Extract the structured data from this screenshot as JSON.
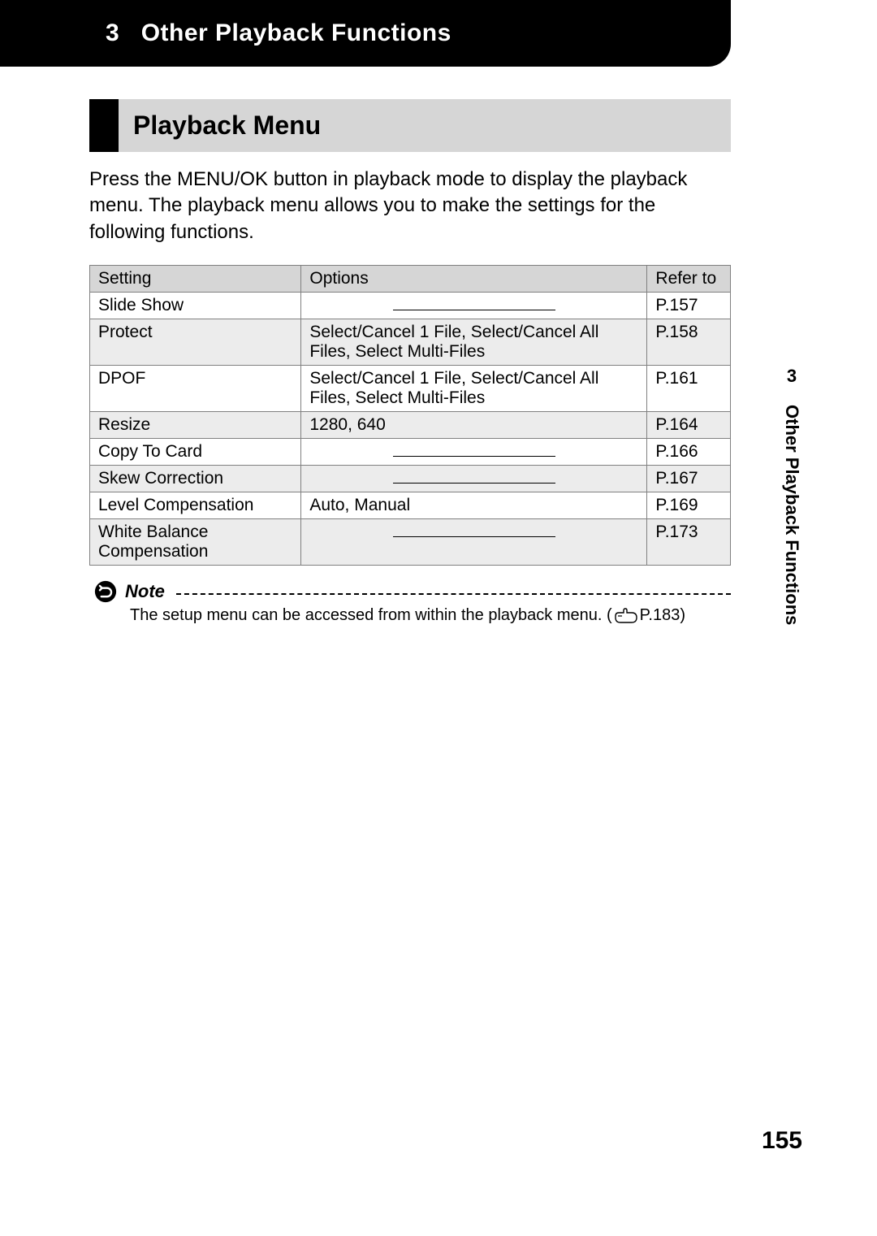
{
  "chapter": {
    "prefix": "3",
    "title": "Other Playback Functions"
  },
  "section": {
    "title": "Playback Menu"
  },
  "intro": "Press the MENU/OK button in playback mode to display the playback menu. The playback menu allows you to make the settings for the following functions.",
  "table": {
    "headers": {
      "setting": "Setting",
      "options": "Options",
      "refer": "Refer to"
    },
    "rows": [
      {
        "setting": "Slide Show",
        "options": "",
        "refer": "P.157",
        "dash": true,
        "shaded": false
      },
      {
        "setting": "Protect",
        "options": "Select/Cancel 1 File, Select/Cancel All Files, Select Multi-Files",
        "refer": "P.158",
        "dash": false,
        "shaded": true
      },
      {
        "setting": "DPOF",
        "options": "Select/Cancel 1 File, Select/Cancel All Files, Select Multi-Files",
        "refer": "P.161",
        "dash": false,
        "shaded": false
      },
      {
        "setting": "Resize",
        "options": "1280, 640",
        "refer": "P.164",
        "dash": false,
        "shaded": true
      },
      {
        "setting": "Copy To Card",
        "options": "",
        "refer": "P.166",
        "dash": true,
        "shaded": false
      },
      {
        "setting": "Skew Correction",
        "options": "",
        "refer": "P.167",
        "dash": true,
        "shaded": true
      },
      {
        "setting": "Level Compensation",
        "options": "Auto, Manual",
        "refer": "P.169",
        "dash": false,
        "shaded": false
      },
      {
        "setting": "White Balance Compensation",
        "options": "",
        "refer": "P.173",
        "dash": true,
        "shaded": true
      }
    ],
    "col_widths": [
      "33%",
      "54%",
      "13%"
    ]
  },
  "note": {
    "label": "Note",
    "text_before": "The setup menu can be accessed from within the playback menu. (",
    "ref_page": "P.183",
    "text_after": ")"
  },
  "side_tab": {
    "num": "3",
    "text": "Other Playback Functions"
  },
  "page_number": "155",
  "colors": {
    "black": "#000000",
    "header_gray": "#d6d6d6",
    "row_shade": "#ececec",
    "border": "#808080"
  }
}
